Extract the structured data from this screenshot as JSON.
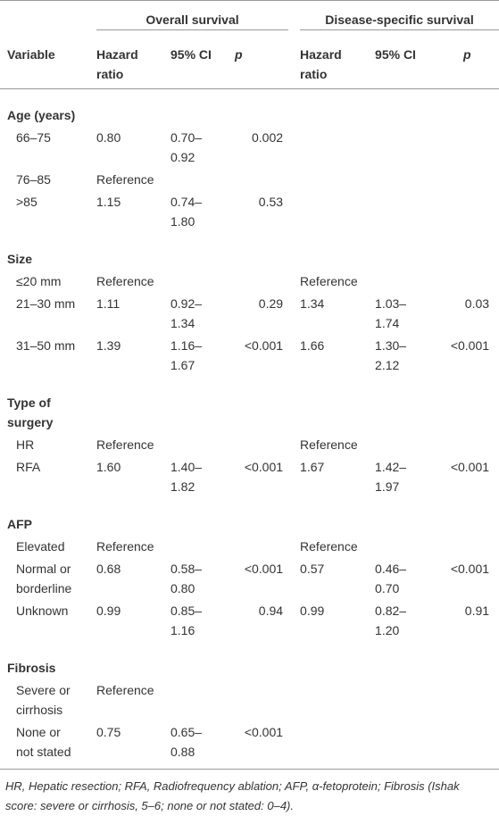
{
  "header": {
    "groups": [
      "Overall survival",
      "Disease-specific survival"
    ],
    "columns": [
      "Variable",
      "Hazard ratio",
      "95% CI",
      "p",
      "Hazard ratio",
      "95% CI",
      "p"
    ]
  },
  "sections": [
    {
      "title": "Age (years)",
      "rows": [
        [
          "66–75",
          "0.80",
          "0.70–0.92",
          "0.002",
          null,
          null,
          null
        ],
        [
          "76–85",
          "Reference",
          null,
          null,
          null,
          null,
          null
        ],
        [
          ">85",
          "1.15",
          "0.74–1.80",
          "0.53",
          null,
          null,
          null
        ]
      ]
    },
    {
      "title": "Size",
      "rows": [
        [
          "≤20 mm",
          "Reference",
          null,
          null,
          "Reference",
          null,
          null
        ],
        [
          "21–30 mm",
          "1.11",
          "0.92–1.34",
          "0.29",
          "1.34",
          "1.03–1.74",
          "0.03"
        ],
        [
          "31–50 mm",
          "1.39",
          "1.16–1.67",
          "<0.001",
          "1.66",
          "1.30–2.12",
          "<0.001"
        ]
      ]
    },
    {
      "title": "Type of surgery",
      "rows": [
        [
          "HR",
          "Reference",
          null,
          null,
          "Reference",
          null,
          null
        ],
        [
          "RFA",
          "1.60",
          "1.40–1.82",
          "<0.001",
          "1.67",
          "1.42–1.97",
          "<0.001"
        ]
      ]
    },
    {
      "title": "AFP",
      "rows": [
        [
          "Elevated",
          "Reference",
          null,
          null,
          "Reference",
          null,
          null
        ],
        [
          "Normal or borderline",
          "0.68",
          "0.58–0.80",
          "<0.001",
          "0.57",
          "0.46–0.70",
          "<0.001"
        ],
        [
          "Unknown",
          "0.99",
          "0.85–1.16",
          "0.94",
          "0.99",
          "0.82–1.20",
          "0.91"
        ]
      ]
    },
    {
      "title": "Fibrosis",
      "rows": [
        [
          "Severe or cirrhosis",
          "Reference",
          null,
          null,
          null,
          null,
          null
        ],
        [
          "None or not stated",
          "0.75",
          "0.65–0.88",
          "<0.001",
          null,
          null,
          null
        ]
      ]
    }
  ],
  "footnote": "HR, Hepatic resection; RFA, Radiofrequency ablation; AFP, α-fetoprotein; Fibrosis (Ishak score: severe or cirrhosis, 5–6; none or not stated: 0–4)."
}
